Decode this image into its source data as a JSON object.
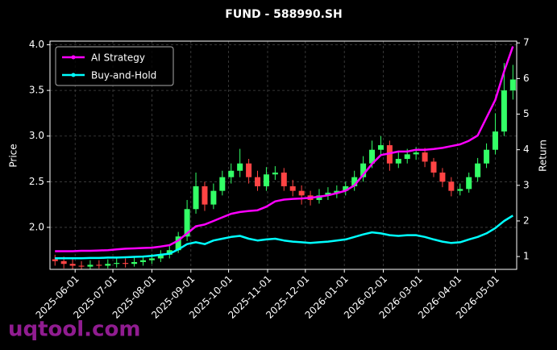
{
  "chart_data": {
    "type": "candlestick",
    "title": "FUND - 588990.SH",
    "ylabel": "Price",
    "y2label": "Return",
    "watermark": "uqtool.com",
    "x": [
      "2025-05-16",
      "2025-05-23",
      "2025-05-30",
      "2025-06-06",
      "2025-06-13",
      "2025-06-20",
      "2025-06-27",
      "2025-07-04",
      "2025-07-11",
      "2025-07-18",
      "2025-07-25",
      "2025-08-01",
      "2025-08-08",
      "2025-08-15",
      "2025-08-22",
      "2025-08-29",
      "2025-09-05",
      "2025-09-12",
      "2025-09-19",
      "2025-09-26",
      "2025-10-03",
      "2025-10-10",
      "2025-10-17",
      "2025-10-24",
      "2025-10-31",
      "2025-11-07",
      "2025-11-14",
      "2025-11-21",
      "2025-11-28",
      "2025-12-05",
      "2025-12-12",
      "2025-12-19",
      "2025-12-26",
      "2026-01-02",
      "2026-01-09",
      "2026-01-16",
      "2026-01-23",
      "2026-01-30",
      "2026-02-06",
      "2026-02-13",
      "2026-02-20",
      "2026-02-27",
      "2026-03-06",
      "2026-03-13",
      "2026-03-20",
      "2026-03-27",
      "2026-04-03",
      "2026-04-10",
      "2026-04-17",
      "2026-04-24",
      "2026-05-01",
      "2026-05-08",
      "2026-05-15"
    ],
    "open": [
      1.65,
      1.63,
      1.6,
      1.58,
      1.57,
      1.59,
      1.58,
      1.6,
      1.61,
      1.6,
      1.62,
      1.64,
      1.66,
      1.7,
      1.75,
      1.9,
      2.2,
      2.45,
      2.25,
      2.4,
      2.55,
      2.62,
      2.7,
      2.55,
      2.45,
      2.58,
      2.6,
      2.45,
      2.4,
      2.35,
      2.3,
      2.35,
      2.38,
      2.4,
      2.45,
      2.55,
      2.7,
      2.85,
      2.9,
      2.7,
      2.75,
      2.8,
      2.82,
      2.72,
      2.6,
      2.5,
      2.4,
      2.42,
      2.55,
      2.7,
      2.85,
      3.05,
      3.5
    ],
    "high": [
      1.7,
      1.68,
      1.65,
      1.63,
      1.64,
      1.64,
      1.65,
      1.66,
      1.66,
      1.67,
      1.69,
      1.71,
      1.75,
      1.8,
      1.95,
      2.3,
      2.6,
      2.5,
      2.48,
      2.62,
      2.7,
      2.86,
      2.75,
      2.62,
      2.66,
      2.67,
      2.65,
      2.52,
      2.46,
      2.4,
      2.42,
      2.44,
      2.46,
      2.5,
      2.62,
      2.78,
      2.95,
      3.0,
      2.95,
      2.82,
      2.86,
      2.88,
      2.87,
      2.76,
      2.65,
      2.55,
      2.48,
      2.6,
      2.76,
      2.92,
      3.25,
      3.8,
      3.78
    ],
    "low": [
      1.58,
      1.55,
      1.54,
      1.54,
      1.54,
      1.55,
      1.55,
      1.56,
      1.56,
      1.57,
      1.58,
      1.6,
      1.62,
      1.66,
      1.72,
      1.85,
      2.15,
      2.18,
      2.2,
      2.35,
      2.48,
      2.55,
      2.48,
      2.4,
      2.4,
      2.52,
      2.4,
      2.34,
      2.25,
      2.24,
      2.26,
      2.3,
      2.32,
      2.35,
      2.4,
      2.5,
      2.65,
      2.78,
      2.62,
      2.65,
      2.7,
      2.74,
      2.66,
      2.55,
      2.44,
      2.34,
      2.35,
      2.38,
      2.5,
      2.65,
      2.8,
      3.0,
      3.4
    ],
    "close": [
      1.63,
      1.6,
      1.58,
      1.57,
      1.59,
      1.58,
      1.6,
      1.61,
      1.6,
      1.62,
      1.64,
      1.66,
      1.7,
      1.75,
      1.9,
      2.2,
      2.45,
      2.25,
      2.4,
      2.55,
      2.62,
      2.7,
      2.55,
      2.45,
      2.58,
      2.6,
      2.45,
      2.4,
      2.35,
      2.3,
      2.35,
      2.38,
      2.4,
      2.45,
      2.55,
      2.7,
      2.85,
      2.9,
      2.7,
      2.75,
      2.8,
      2.82,
      2.72,
      2.6,
      2.5,
      2.4,
      2.42,
      2.55,
      2.7,
      2.85,
      3.05,
      3.5,
      3.62
    ],
    "up_color": "#33ff66",
    "down_color": "#ff4444",
    "series": [
      {
        "name": "AI Strategy",
        "color": "#ff00ff",
        "axis": "y2",
        "values": [
          1.15,
          1.15,
          1.15,
          1.16,
          1.16,
          1.17,
          1.18,
          1.2,
          1.22,
          1.23,
          1.24,
          1.25,
          1.28,
          1.32,
          1.45,
          1.65,
          1.85,
          1.9,
          2.0,
          2.1,
          2.2,
          2.25,
          2.28,
          2.3,
          2.4,
          2.55,
          2.6,
          2.62,
          2.63,
          2.65,
          2.68,
          2.72,
          2.78,
          2.85,
          3.0,
          3.3,
          3.6,
          3.85,
          3.9,
          3.95,
          3.95,
          4.0,
          4.0,
          4.02,
          4.05,
          4.1,
          4.15,
          4.25,
          4.4,
          4.9,
          5.4,
          6.2,
          6.9
        ]
      },
      {
        "name": "Buy-and-Hold",
        "color": "#00ffff",
        "axis": "y2",
        "values": [
          0.95,
          0.95,
          0.95,
          0.95,
          0.96,
          0.96,
          0.97,
          0.97,
          0.98,
          0.99,
          1.0,
          1.02,
          1.05,
          1.08,
          1.2,
          1.35,
          1.4,
          1.35,
          1.45,
          1.5,
          1.55,
          1.58,
          1.5,
          1.45,
          1.48,
          1.5,
          1.45,
          1.42,
          1.4,
          1.38,
          1.4,
          1.42,
          1.45,
          1.48,
          1.55,
          1.62,
          1.68,
          1.65,
          1.6,
          1.58,
          1.6,
          1.6,
          1.55,
          1.48,
          1.42,
          1.38,
          1.4,
          1.48,
          1.55,
          1.65,
          1.8,
          2.0,
          2.15
        ]
      }
    ],
    "xlim": [
      "2025-05-12",
      "2026-05-18"
    ],
    "xticks": [
      "2025-06-01",
      "2025-07-01",
      "2025-08-01",
      "2025-09-01",
      "2025-10-01",
      "2025-11-01",
      "2025-12-01",
      "2026-01-01",
      "2026-02-01",
      "2026-03-01",
      "2026-04-01",
      "2026-05-01"
    ],
    "ylim": [
      1.54,
      4.04
    ],
    "yticks": [
      {
        "value": 2,
        "label": "2.0"
      },
      2.5,
      {
        "value": 3,
        "label": "3.0"
      },
      3.5,
      {
        "value": 4,
        "label": "4.0"
      }
    ],
    "y2lim": [
      0.64,
      7.05
    ],
    "y2ticks": [
      1,
      2,
      3,
      4,
      5,
      6,
      7
    ],
    "grid": true,
    "legend": "upper left"
  }
}
